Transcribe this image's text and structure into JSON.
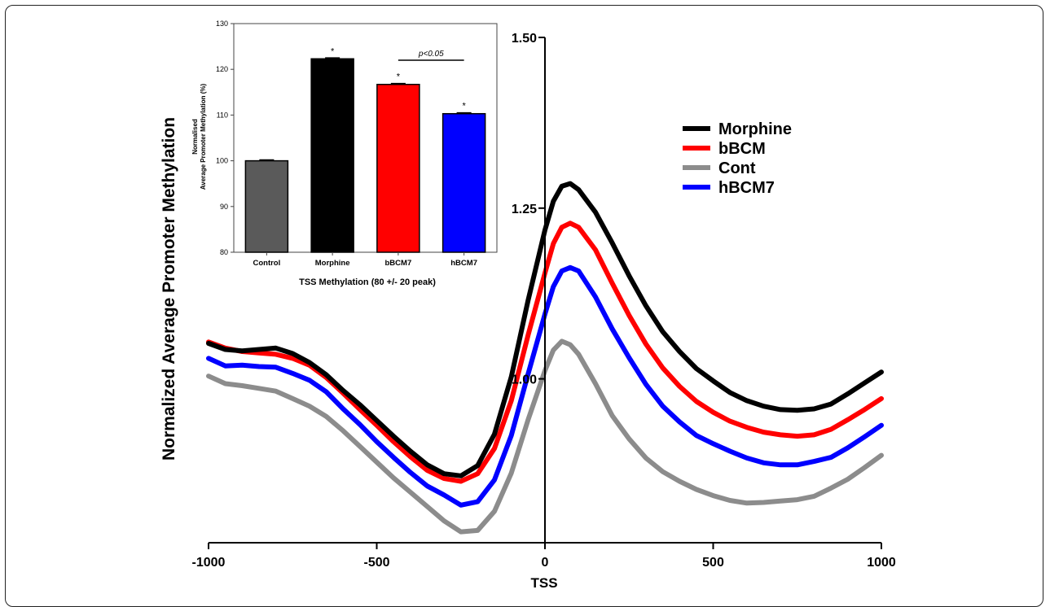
{
  "chart_data": [
    {
      "type": "line",
      "xlabel": "TSS",
      "ylabel": "Normalized Average Promoter Methylation",
      "xlim": [
        -1000,
        1000
      ],
      "ylim": [
        0.76,
        1.5
      ],
      "x_ticks": [
        "-1000",
        "-500",
        "0",
        "500",
        "1000"
      ],
      "y_ticks": [
        "1.00",
        "1.25",
        "1.50"
      ],
      "legend_placement": "right",
      "grid": false,
      "series": [
        {
          "name": "Morphine",
          "color": "#000000",
          "x": [
            -1000,
            -950,
            -900,
            -850,
            -800,
            -750,
            -700,
            -650,
            -600,
            -550,
            -500,
            -450,
            -400,
            -350,
            -300,
            -250,
            -200,
            -150,
            -100,
            -50,
            0,
            25,
            50,
            75,
            100,
            150,
            200,
            250,
            300,
            350,
            400,
            450,
            500,
            550,
            600,
            650,
            700,
            750,
            800,
            850,
            900,
            950,
            1000
          ],
          "y": [
            1.052,
            1.043,
            1.041,
            1.043,
            1.045,
            1.037,
            1.024,
            1.006,
            0.983,
            0.962,
            0.939,
            0.916,
            0.894,
            0.874,
            0.861,
            0.858,
            0.873,
            0.919,
            1.003,
            1.115,
            1.218,
            1.26,
            1.282,
            1.286,
            1.277,
            1.244,
            1.199,
            1.151,
            1.107,
            1.069,
            1.04,
            1.015,
            0.997,
            0.98,
            0.968,
            0.96,
            0.955,
            0.954,
            0.956,
            0.963,
            0.978,
            0.994,
            1.01
          ]
        },
        {
          "name": "bBCM",
          "color": "#ff0000",
          "x": [
            -1000,
            -950,
            -900,
            -850,
            -800,
            -750,
            -700,
            -650,
            -600,
            -550,
            -500,
            -450,
            -400,
            -350,
            -300,
            -250,
            -200,
            -150,
            -100,
            -50,
            0,
            25,
            50,
            75,
            100,
            150,
            200,
            250,
            300,
            350,
            400,
            450,
            500,
            550,
            600,
            650,
            700,
            750,
            800,
            850,
            900,
            950,
            1000
          ],
          "y": [
            1.054,
            1.045,
            1.04,
            1.038,
            1.036,
            1.03,
            1.02,
            1.002,
            0.979,
            0.955,
            0.932,
            0.908,
            0.886,
            0.866,
            0.854,
            0.85,
            0.861,
            0.898,
            0.968,
            1.064,
            1.155,
            1.198,
            1.222,
            1.228,
            1.222,
            1.189,
            1.14,
            1.093,
            1.051,
            1.016,
            0.989,
            0.967,
            0.951,
            0.938,
            0.929,
            0.922,
            0.918,
            0.916,
            0.918,
            0.926,
            0.94,
            0.955,
            0.971
          ]
        },
        {
          "name": "Cont",
          "color": "#8c8c8c",
          "x": [
            -1000,
            -950,
            -900,
            -850,
            -800,
            -750,
            -700,
            -650,
            -600,
            -550,
            -500,
            -450,
            -400,
            -350,
            -300,
            -250,
            -200,
            -150,
            -100,
            -50,
            0,
            25,
            50,
            75,
            100,
            150,
            200,
            250,
            300,
            350,
            400,
            450,
            500,
            550,
            600,
            650,
            700,
            750,
            800,
            850,
            900,
            950,
            1000
          ],
          "y": [
            1.004,
            0.993,
            0.99,
            0.986,
            0.982,
            0.971,
            0.96,
            0.945,
            0.924,
            0.901,
            0.878,
            0.855,
            0.834,
            0.813,
            0.792,
            0.776,
            0.778,
            0.806,
            0.862,
            0.94,
            1.012,
            1.042,
            1.055,
            1.05,
            1.036,
            0.993,
            0.946,
            0.912,
            0.884,
            0.864,
            0.85,
            0.838,
            0.829,
            0.822,
            0.818,
            0.819,
            0.821,
            0.823,
            0.828,
            0.84,
            0.853,
            0.87,
            0.888
          ]
        },
        {
          "name": "hBCM7",
          "color": "#0000ff",
          "x": [
            -1000,
            -950,
            -900,
            -850,
            -800,
            -750,
            -700,
            -650,
            -600,
            -550,
            -500,
            -450,
            -400,
            -350,
            -300,
            -250,
            -200,
            -150,
            -100,
            -50,
            0,
            25,
            50,
            75,
            100,
            150,
            200,
            250,
            300,
            350,
            400,
            450,
            500,
            550,
            600,
            650,
            700,
            750,
            800,
            850,
            900,
            950,
            1000
          ],
          "y": [
            1.03,
            1.019,
            1.02,
            1.018,
            1.017,
            1.008,
            0.998,
            0.981,
            0.956,
            0.933,
            0.908,
            0.885,
            0.863,
            0.843,
            0.83,
            0.815,
            0.82,
            0.852,
            0.917,
            1.007,
            1.095,
            1.135,
            1.158,
            1.163,
            1.158,
            1.12,
            1.073,
            1.031,
            0.992,
            0.96,
            0.937,
            0.917,
            0.905,
            0.894,
            0.884,
            0.877,
            0.874,
            0.874,
            0.879,
            0.885,
            0.899,
            0.915,
            0.932
          ]
        }
      ]
    },
    {
      "type": "bar",
      "title": "",
      "xlabel": "TSS Methylation (80 +/- 20 peak)",
      "ylabel_lines": [
        "Normalised",
        "Average Promoter Methylation (%)"
      ],
      "ylim": [
        80,
        130
      ],
      "y_ticks": [
        "80",
        "90",
        "100",
        "110",
        "120",
        "130"
      ],
      "categories": [
        "Control",
        "Morphine",
        "bBCM7",
        "hBCM7"
      ],
      "values": [
        100,
        122.3,
        116.7,
        110.3
      ],
      "errors": [
        0.2,
        0.2,
        0.2,
        0.2
      ],
      "colors": [
        "#5a5a5a",
        "#000000",
        "#ff0000",
        "#0000ff"
      ],
      "significance": [
        "",
        "*",
        "*",
        "*"
      ],
      "comparison": {
        "from": "bBCM7",
        "to": "hBCM7",
        "label": "p<0.05"
      }
    }
  ]
}
